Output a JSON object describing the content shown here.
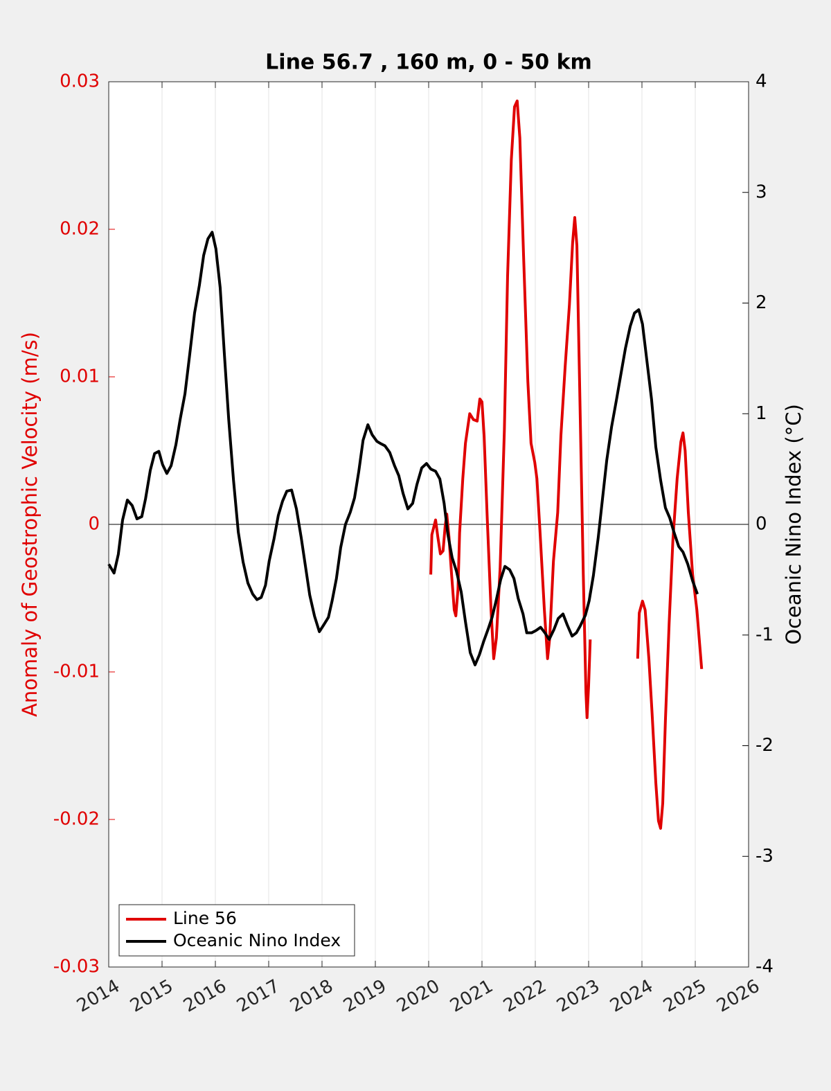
{
  "chart_data": {
    "type": "line",
    "title": "Line 56.7 , 160 m, 0 - 50 km",
    "ylabel": "Anomaly of Geostrophic Velocity (m/s)",
    "y2label": "Oceanic Nino Index (°C)",
    "xlim": [
      2014,
      2026
    ],
    "xticks": [
      2014,
      2015,
      2016,
      2017,
      2018,
      2019,
      2020,
      2021,
      2022,
      2023,
      2024,
      2025,
      2026
    ],
    "ylim": [
      -0.03,
      0.03
    ],
    "yticks": [
      -0.03,
      -0.02,
      -0.01,
      0,
      0.01,
      0.02,
      0.03
    ],
    "y2lim": [
      -4,
      4
    ],
    "y2ticks": [
      -4,
      -3,
      -2,
      -1,
      0,
      1,
      2,
      3,
      4
    ],
    "yline": 0,
    "xgrid": true,
    "legend": "lower left",
    "ylabel_color": "#e00000",
    "y2label_color": "#000000",
    "series": [
      {
        "name": "Line 56",
        "color": "#e00000",
        "axis": "y",
        "x": [
          2020.04,
          2020.06,
          2020.13,
          2020.17,
          2020.22,
          2020.27,
          2020.31,
          2020.34,
          2020.38,
          2020.43,
          2020.48,
          2020.51,
          2020.55,
          2020.58,
          2020.64,
          2020.69,
          2020.77,
          2020.84,
          2020.91,
          2020.96,
          2021.0,
          2021.04,
          2021.1,
          2021.17,
          2021.22,
          2021.27,
          2021.34,
          2021.42,
          2021.48,
          2021.55,
          2021.61,
          2021.66,
          2021.71,
          2021.78,
          2021.86,
          2021.92,
          2021.99,
          2022.03,
          2022.09,
          2022.17,
          2022.23,
          2022.27,
          2022.34,
          2022.42,
          2022.48,
          2022.56,
          2022.64,
          2022.7,
          2022.74,
          2022.78,
          2022.83,
          2022.9,
          2022.95,
          2022.97,
          2023.0,
          2023.03,
          null,
          2023.92,
          2023.95,
          2024.01,
          2024.06,
          2024.13,
          2024.19,
          2024.26,
          2024.31,
          2024.35,
          2024.39,
          2024.44,
          2024.51,
          2024.58,
          2024.66,
          2024.73,
          2024.77,
          2024.81,
          2024.87,
          2024.95,
          2025.03,
          2025.12
        ],
        "values": [
          -0.0034,
          -0.0007,
          0.0003,
          -0.0008,
          -0.002,
          -0.0018,
          -0.0001,
          0.0007,
          -0.0008,
          -0.0034,
          -0.0058,
          -0.0062,
          -0.0044,
          -0.0006,
          0.0031,
          0.0055,
          0.0075,
          0.0071,
          0.007,
          0.0085,
          0.0083,
          0.006,
          0.0003,
          -0.0058,
          -0.0091,
          -0.0077,
          -0.003,
          0.0064,
          0.0168,
          0.0247,
          0.0283,
          0.0287,
          0.0262,
          0.0182,
          0.0097,
          0.0055,
          0.0042,
          0.0031,
          -0.0006,
          -0.0058,
          -0.0091,
          -0.0077,
          -0.0025,
          0.0008,
          0.006,
          0.0107,
          0.0149,
          0.0191,
          0.0208,
          0.0189,
          0.0097,
          -0.0034,
          -0.0114,
          -0.0131,
          -0.0109,
          -0.0078,
          null,
          -0.0091,
          -0.006,
          -0.0052,
          -0.0058,
          -0.0091,
          -0.0128,
          -0.0175,
          -0.0201,
          -0.0206,
          -0.0189,
          -0.0133,
          -0.0067,
          -0.0011,
          0.0031,
          0.0056,
          0.0062,
          0.005,
          0.0008,
          -0.0034,
          -0.0058,
          -0.0098
        ]
      },
      {
        "name": "Oceanic Nino Index",
        "color": "#000000",
        "axis": "y2",
        "x": [
          2014.0,
          2014.1,
          2014.18,
          2014.26,
          2014.35,
          2014.44,
          2014.53,
          2014.62,
          2014.69,
          2014.78,
          2014.86,
          2014.94,
          2015.01,
          2015.09,
          2015.17,
          2015.26,
          2015.34,
          2015.43,
          2015.52,
          2015.61,
          2015.7,
          2015.78,
          2015.86,
          2015.94,
          2016.01,
          2016.09,
          2016.17,
          2016.25,
          2016.34,
          2016.43,
          2016.52,
          2016.61,
          2016.7,
          2016.78,
          2016.86,
          2016.94,
          2017.01,
          2017.1,
          2017.18,
          2017.26,
          2017.34,
          2017.43,
          2017.52,
          2017.61,
          2017.69,
          2017.77,
          2017.86,
          2017.95,
          2018.03,
          2018.12,
          2018.19,
          2018.27,
          2018.35,
          2018.44,
          2018.53,
          2018.61,
          2018.69,
          2018.77,
          2018.86,
          2018.94,
          2019.03,
          2019.1,
          2019.18,
          2019.27,
          2019.36,
          2019.44,
          2019.52,
          2019.61,
          2019.7,
          2019.78,
          2019.87,
          2019.96,
          2020.04,
          2020.13,
          2020.21,
          2020.29,
          2020.36,
          2020.44,
          2020.52,
          2020.61,
          2020.69,
          2020.78,
          2020.87,
          2020.95,
          2021.03,
          2021.12,
          2021.19,
          2021.27,
          2021.35,
          2021.43,
          2021.52,
          2021.6,
          2021.68,
          2021.77,
          2021.84,
          2021.93,
          2022.01,
          2022.1,
          2022.18,
          2022.26,
          2022.35,
          2022.43,
          2022.52,
          2022.6,
          2022.69,
          2022.77,
          2022.84,
          2022.94,
          2023.01,
          2023.09,
          2023.18,
          2023.26,
          2023.34,
          2023.43,
          2023.52,
          2023.61,
          2023.69,
          2023.78,
          2023.86,
          2023.94,
          2024.01,
          2024.09,
          2024.18,
          2024.26,
          2024.35,
          2024.44,
          2024.52,
          2024.6,
          2024.69,
          2024.77,
          2024.86,
          2024.95,
          2025.04
        ],
        "values": [
          -0.36,
          -0.44,
          -0.27,
          0.04,
          0.22,
          0.17,
          0.05,
          0.07,
          0.23,
          0.49,
          0.64,
          0.66,
          0.54,
          0.46,
          0.53,
          0.72,
          0.95,
          1.18,
          1.54,
          1.91,
          2.16,
          2.43,
          2.58,
          2.64,
          2.49,
          2.14,
          1.53,
          0.95,
          0.4,
          -0.07,
          -0.34,
          -0.53,
          -0.63,
          -0.68,
          -0.66,
          -0.55,
          -0.33,
          -0.13,
          0.08,
          0.21,
          0.3,
          0.31,
          0.14,
          -0.12,
          -0.38,
          -0.64,
          -0.83,
          -0.97,
          -0.91,
          -0.84,
          -0.69,
          -0.49,
          -0.21,
          0.0,
          0.11,
          0.24,
          0.48,
          0.76,
          0.9,
          0.81,
          0.75,
          0.73,
          0.71,
          0.65,
          0.53,
          0.44,
          0.28,
          0.14,
          0.19,
          0.36,
          0.51,
          0.55,
          0.5,
          0.48,
          0.41,
          0.19,
          -0.09,
          -0.3,
          -0.42,
          -0.61,
          -0.88,
          -1.16,
          -1.27,
          -1.18,
          -1.06,
          -0.94,
          -0.84,
          -0.68,
          -0.5,
          -0.38,
          -0.41,
          -0.49,
          -0.67,
          -0.81,
          -0.98,
          -0.98,
          -0.96,
          -0.93,
          -0.98,
          -1.04,
          -0.95,
          -0.85,
          -0.81,
          -0.91,
          -1.01,
          -0.98,
          -0.92,
          -0.82,
          -0.69,
          -0.46,
          -0.12,
          0.23,
          0.58,
          0.88,
          1.12,
          1.37,
          1.59,
          1.79,
          1.91,
          1.94,
          1.81,
          1.49,
          1.13,
          0.7,
          0.4,
          0.15,
          0.06,
          -0.07,
          -0.2,
          -0.25,
          -0.36,
          -0.51,
          -0.63
        ]
      }
    ]
  }
}
